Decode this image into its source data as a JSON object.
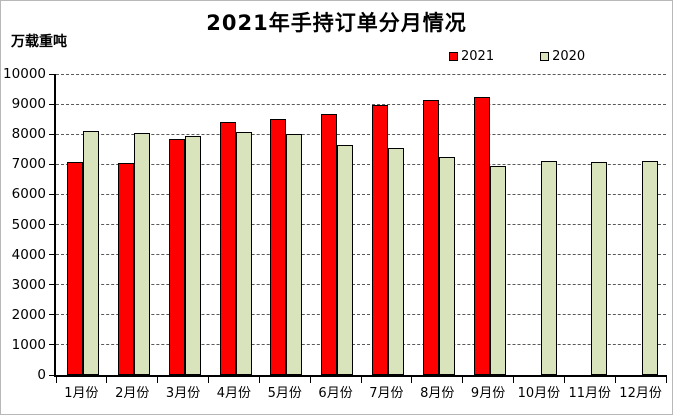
{
  "chart_data": {
    "type": "bar",
    "title": "2021年手持订单分月情况",
    "ylabel": "万载重吨",
    "xlabel": "",
    "categories": [
      "1月份",
      "2月份",
      "3月份",
      "4月份",
      "5月份",
      "6月份",
      "7月份",
      "8月份",
      "9月份",
      "10月份",
      "11月份",
      "12月份"
    ],
    "series": [
      {
        "name": "2021",
        "color": "#ff0000",
        "values": [
          7080,
          7030,
          7840,
          8410,
          8500,
          8670,
          8980,
          9130,
          9240,
          null,
          null,
          null
        ]
      },
      {
        "name": "2020",
        "color": "#d9e4bd",
        "values": [
          8110,
          8040,
          7950,
          8060,
          8000,
          7640,
          7540,
          7240,
          6950,
          7100,
          7090,
          7110
        ]
      }
    ],
    "ylim": [
      0,
      10000
    ],
    "ytick_step": 1000,
    "grid": true,
    "legend_position": "top-right",
    "colors": {
      "axis": "#000000",
      "gridline": "#595959",
      "text": "#000000",
      "background": "#ffffff"
    }
  }
}
